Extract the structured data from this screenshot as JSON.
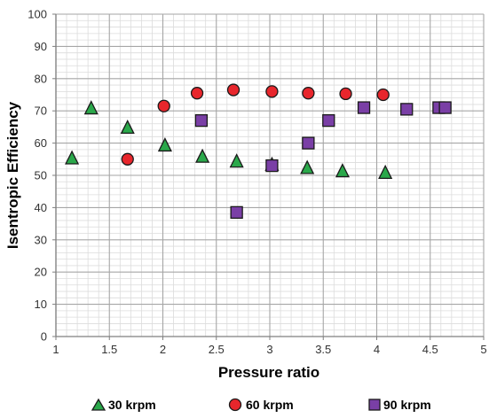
{
  "chart_data": {
    "type": "scatter",
    "title": "",
    "xlabel": "Pressure ratio",
    "ylabel": "Isentropic Efficiency",
    "xlim": [
      1,
      5
    ],
    "ylim": [
      0,
      100
    ],
    "x_ticks": [
      "1",
      "1.5",
      "2",
      "2.5",
      "3",
      "3.5",
      "4",
      "4.5",
      "5"
    ],
    "y_ticks": [
      "0",
      "10",
      "20",
      "30",
      "40",
      "50",
      "60",
      "70",
      "80",
      "90",
      "100"
    ],
    "grid": true,
    "legend_position": "bottom",
    "series": [
      {
        "name": "30 krpm",
        "marker": "triangle",
        "color": "#2aa84a",
        "x": [
          1.15,
          1.33,
          1.67,
          2.02,
          2.37,
          2.69,
          3.02,
          3.35,
          3.68,
          4.08
        ],
        "y": [
          55.5,
          71,
          65,
          59.5,
          56,
          54.5,
          53.5,
          52.5,
          51.5,
          51
        ]
      },
      {
        "name": "60 krpm",
        "marker": "circle",
        "color": "#e8262c",
        "x": [
          1.67,
          2.01,
          2.32,
          2.66,
          3.02,
          3.36,
          3.71,
          4.06
        ],
        "y": [
          55,
          71.5,
          75.5,
          76.5,
          76,
          75.5,
          75.3,
          75
        ]
      },
      {
        "name": "90 krpm",
        "marker": "square",
        "color": "#7a3fa6",
        "x": [
          2.36,
          2.69,
          3.02,
          3.36,
          3.55,
          3.88,
          4.28,
          4.58,
          4.64
        ],
        "y": [
          67,
          38.5,
          53,
          60,
          67,
          71,
          70.5,
          71,
          71
        ]
      }
    ]
  }
}
